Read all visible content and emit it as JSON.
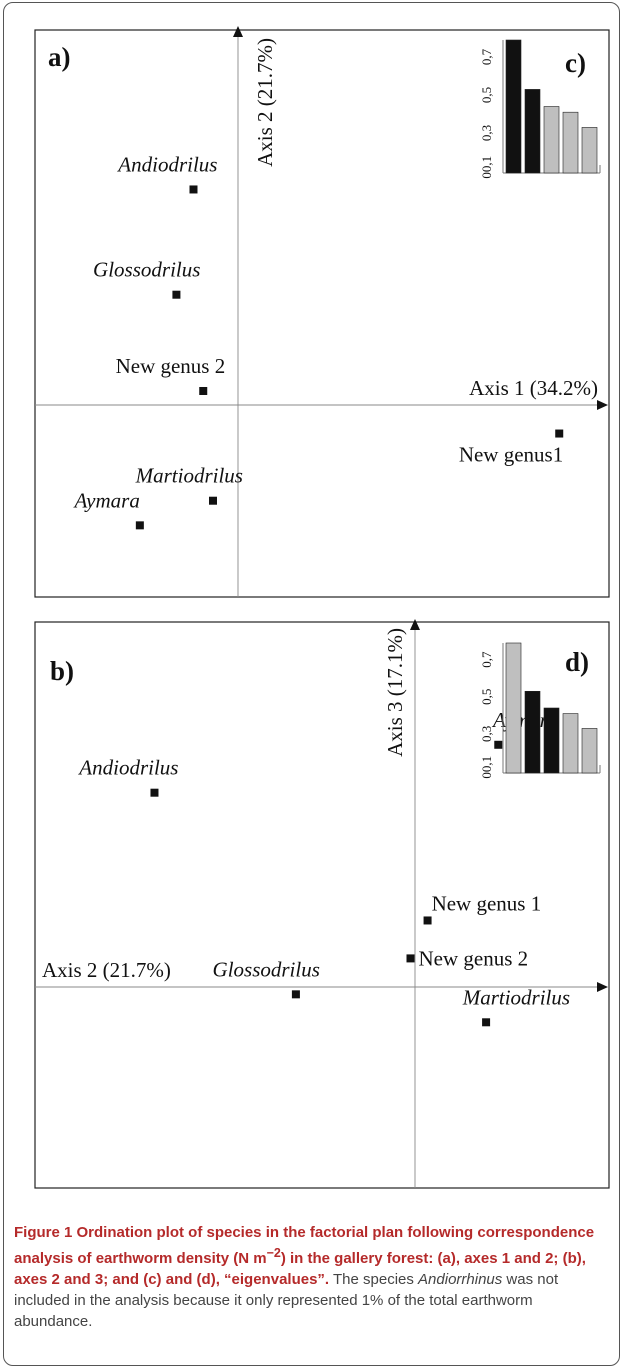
{
  "figure": {
    "caption_bold_lead": "Figure 1 Ordination plot of species in the factorial plan following correspondence analysis of earthworm density (N m",
    "caption_bold_sup": "−2",
    "caption_bold_tail": ") in the gallery forest: (a), axes 1 and 2; (b), axes 2 and 3; and (c) and (d), “eigenvalues”.",
    "caption_note_lead": " The species ",
    "caption_note_italic": "Andiorrhinus",
    "caption_note_tail": " was not included in the analysis because it only represented 1% of the total earthworm abundance."
  },
  "chart_data": [
    {
      "panel": "a)",
      "type": "scatter",
      "xlabel": "Axis 1 (34.2%)",
      "ylabel": "Axis 2 (21.7%)",
      "xlim": [
        -0.85,
        1.5
      ],
      "ylim": [
        -0.85,
        1.7
      ],
      "points": [
        {
          "name": "Andiodrilus",
          "italic": true,
          "x": -0.2,
          "y": 0.97,
          "label_pos": "above"
        },
        {
          "name": "Glossodrilus",
          "italic": true,
          "x": -0.27,
          "y": 0.5,
          "label_pos": "above"
        },
        {
          "name": "New genus 2",
          "italic": false,
          "x": -0.16,
          "y": 0.07,
          "label_pos": "above"
        },
        {
          "name": "New genus1",
          "italic": false,
          "x": 1.3,
          "y": -0.12,
          "label_pos": "below-left"
        },
        {
          "name": "Martiodrilus",
          "italic": true,
          "x": -0.12,
          "y": -0.42,
          "label_pos": "above"
        },
        {
          "name": "Aymara",
          "italic": true,
          "x": -0.42,
          "y": -0.53,
          "label_pos": "above"
        }
      ]
    },
    {
      "panel": "b)",
      "type": "scatter",
      "xlabel": "Axis 2 (21.7%)",
      "ylabel": "Axis 3 (17.1%)",
      "xlim": [
        -1.5,
        0.85
      ],
      "ylim": [
        -1.2,
        1.65
      ],
      "points": [
        {
          "name": "Aymara",
          "italic": true,
          "x": 0.4,
          "y": 1.02,
          "label_pos": "above"
        },
        {
          "name": "Andiodrilus",
          "italic": true,
          "x": -1.01,
          "y": 0.78,
          "label_pos": "above"
        },
        {
          "name": "New genus 1",
          "italic": false,
          "x": 0.11,
          "y": 0.14,
          "label_pos": "right-above"
        },
        {
          "name": "New genus 2",
          "italic": false,
          "x": 0.04,
          "y": -0.05,
          "label_pos": "right"
        },
        {
          "name": "Glossodrilus",
          "italic": true,
          "x": -0.43,
          "y": -0.23,
          "label_pos": "above-left"
        },
        {
          "name": "Martiodrilus",
          "italic": true,
          "x": 0.35,
          "y": -0.37,
          "label_pos": "above"
        }
      ]
    },
    {
      "panel": "c)",
      "type": "bar",
      "title": "eigenvalues",
      "yticks": [
        "00,1",
        "0,3",
        "0,5",
        "0,7"
      ],
      "ylim": [
        0,
        0.7
      ],
      "values": [
        0.7,
        0.44,
        0.35,
        0.32,
        0.24
      ],
      "highlight": [
        true,
        true,
        false,
        false,
        false
      ],
      "colors": {
        "highlight": "#111111",
        "normal": "#bfbfbf"
      }
    },
    {
      "panel": "d)",
      "type": "bar",
      "title": "eigenvalues",
      "yticks": [
        "00,1",
        "0,3",
        "0,5",
        "0,7"
      ],
      "ylim": [
        0,
        0.7
      ],
      "values": [
        0.7,
        0.44,
        0.35,
        0.32,
        0.24
      ],
      "highlight": [
        false,
        true,
        true,
        false,
        false
      ],
      "colors": {
        "highlight": "#111111",
        "normal": "#bfbfbf"
      }
    }
  ]
}
